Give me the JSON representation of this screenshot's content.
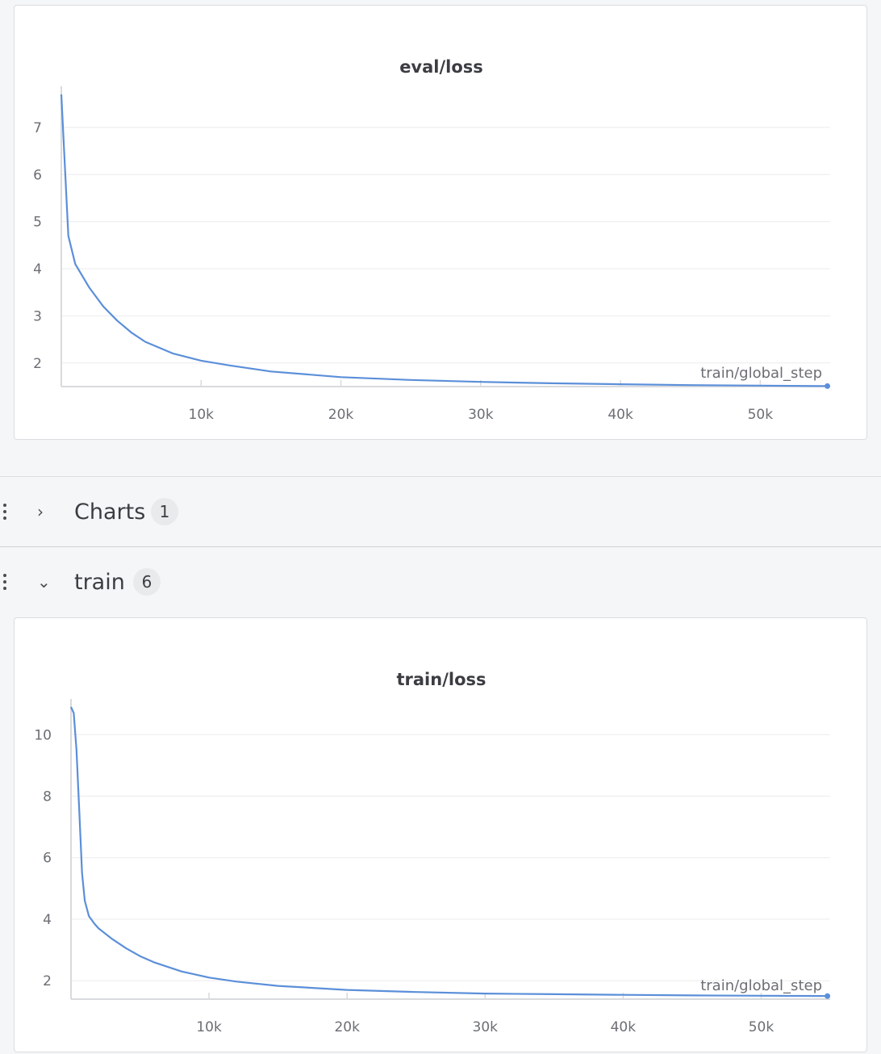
{
  "panels": {
    "eval": {
      "title": "eval/loss",
      "xaxis_label": "train/global_step"
    },
    "train": {
      "title": "train/loss",
      "xaxis_label": "train/global_step"
    }
  },
  "sections": {
    "charts": {
      "title": "Charts",
      "count": "1",
      "expanded": false
    },
    "train": {
      "title": "train",
      "count": "6",
      "expanded": true
    }
  },
  "colors": {
    "line": "#5b8fd9",
    "grid": "#ececef",
    "axis": "#d9dadd"
  },
  "chart_data": [
    {
      "type": "line",
      "title": "eval/loss",
      "xlabel": "train/global_step",
      "ylabel": "",
      "xlim": [
        0,
        55000
      ],
      "ylim": [
        1.5,
        7.7
      ],
      "x_ticks": [
        10000,
        20000,
        30000,
        40000,
        50000
      ],
      "x_tick_labels": [
        "10k",
        "20k",
        "30k",
        "40k",
        "50k"
      ],
      "y_ticks": [
        2,
        3,
        4,
        5,
        6,
        7
      ],
      "y_tick_labels": [
        "2",
        "3",
        "4",
        "5",
        "6",
        "7"
      ],
      "grid": true,
      "series": [
        {
          "name": "",
          "x": [
            0,
            500,
            1000,
            1500,
            2000,
            3000,
            4000,
            5000,
            6000,
            8000,
            10000,
            12000,
            15000,
            20000,
            25000,
            30000,
            35000,
            40000,
            45000,
            50000,
            54800
          ],
          "y": [
            7.7,
            4.7,
            4.1,
            3.85,
            3.6,
            3.2,
            2.9,
            2.65,
            2.45,
            2.2,
            2.05,
            1.95,
            1.82,
            1.7,
            1.64,
            1.6,
            1.57,
            1.55,
            1.53,
            1.52,
            1.51
          ]
        }
      ]
    },
    {
      "type": "line",
      "title": "train/loss",
      "xlabel": "train/global_step",
      "ylabel": "",
      "xlim": [
        0,
        55000
      ],
      "ylim": [
        1.4,
        10.9
      ],
      "x_ticks": [
        10000,
        20000,
        30000,
        40000,
        50000
      ],
      "x_tick_labels": [
        "10k",
        "20k",
        "30k",
        "40k",
        "50k"
      ],
      "y_ticks": [
        2,
        4,
        6,
        8,
        10
      ],
      "y_tick_labels": [
        "2",
        "4",
        "6",
        "8",
        "10"
      ],
      "grid": true,
      "series": [
        {
          "name": "",
          "x": [
            0,
            200,
            400,
            600,
            800,
            1000,
            1300,
            1700,
            2000,
            3000,
            4000,
            5000,
            6000,
            8000,
            10000,
            12000,
            15000,
            20000,
            25000,
            30000,
            35000,
            40000,
            45000,
            50000,
            54800
          ],
          "y": [
            10.9,
            10.7,
            9.5,
            7.5,
            5.5,
            4.6,
            4.1,
            3.85,
            3.7,
            3.35,
            3.05,
            2.8,
            2.6,
            2.3,
            2.1,
            1.97,
            1.83,
            1.7,
            1.63,
            1.58,
            1.56,
            1.54,
            1.52,
            1.51,
            1.5
          ]
        }
      ]
    }
  ]
}
